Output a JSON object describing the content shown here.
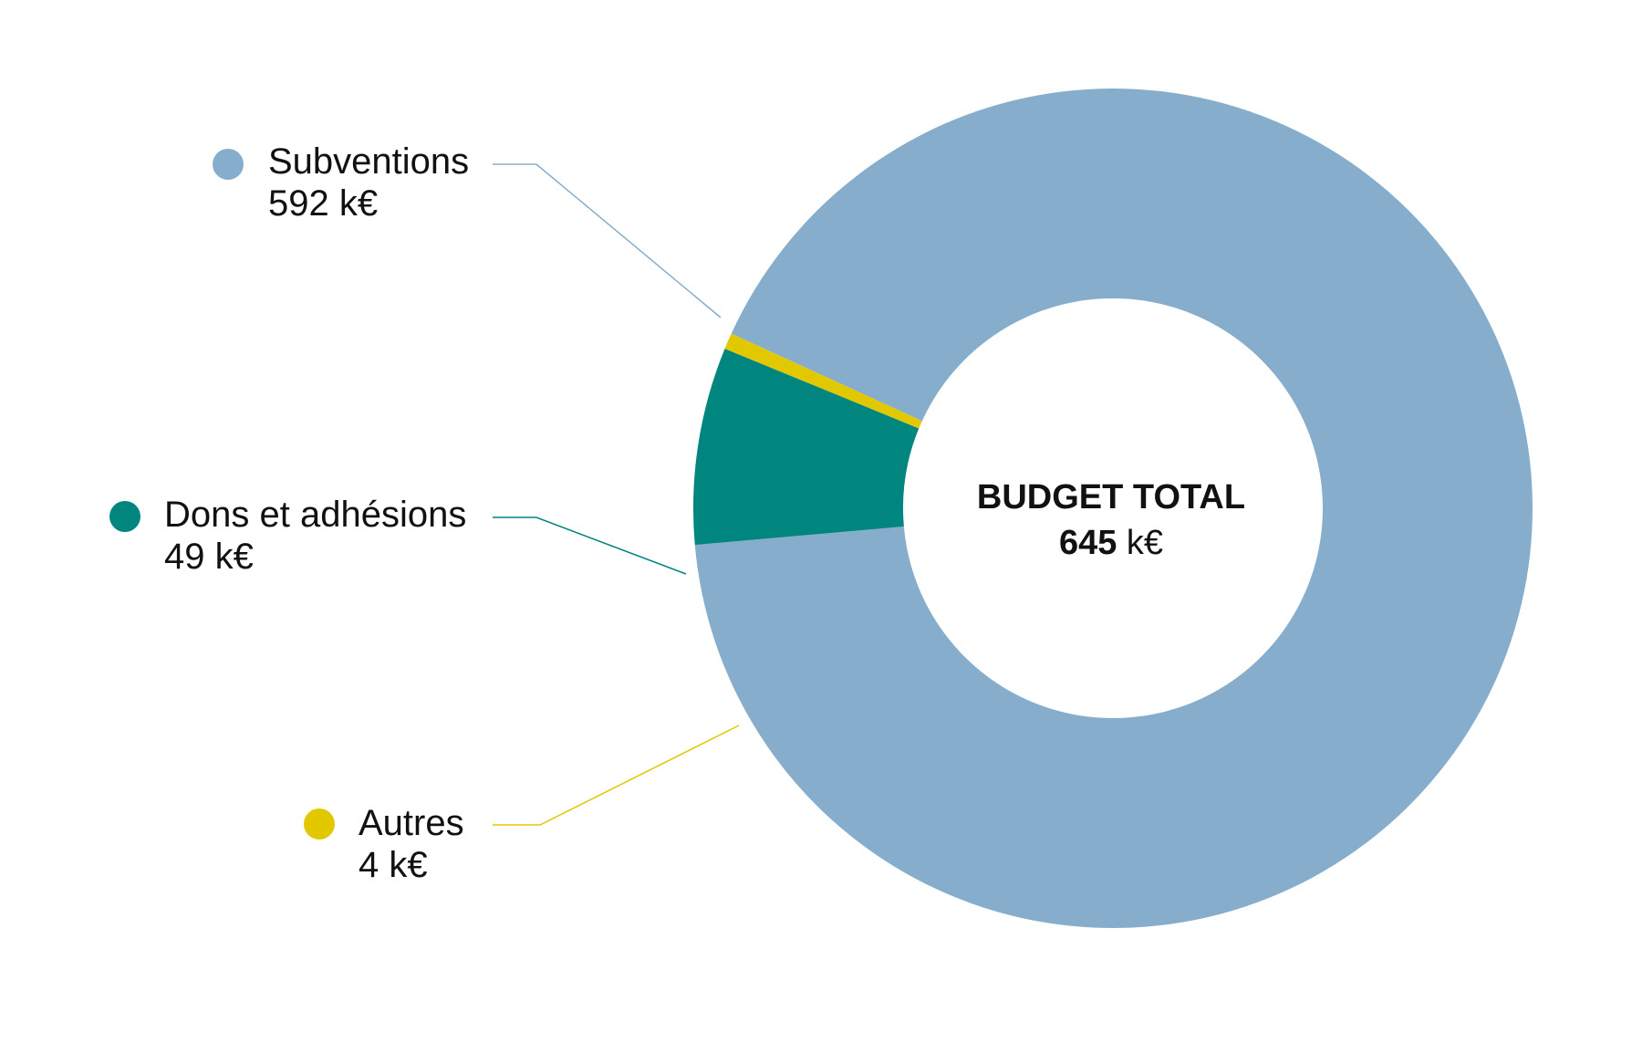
{
  "chart_data": {
    "type": "pie",
    "variant": "donut",
    "center_label": {
      "title": "BUDGET TOTAL",
      "value_number": "645",
      "value_unit": "k€"
    },
    "total": 645,
    "unit": "k€",
    "legend_placement": "left",
    "series": [
      {
        "name": "Subventions",
        "value": 592,
        "value_label": "592 k€",
        "color": "#87adcc"
      },
      {
        "name": "Dons et adhésions",
        "value": 49,
        "value_label": "49 k€",
        "color": "#00867e"
      },
      {
        "name": "Autres",
        "value": 4,
        "value_label": "4 k€",
        "color": "#e2c800"
      }
    ]
  }
}
